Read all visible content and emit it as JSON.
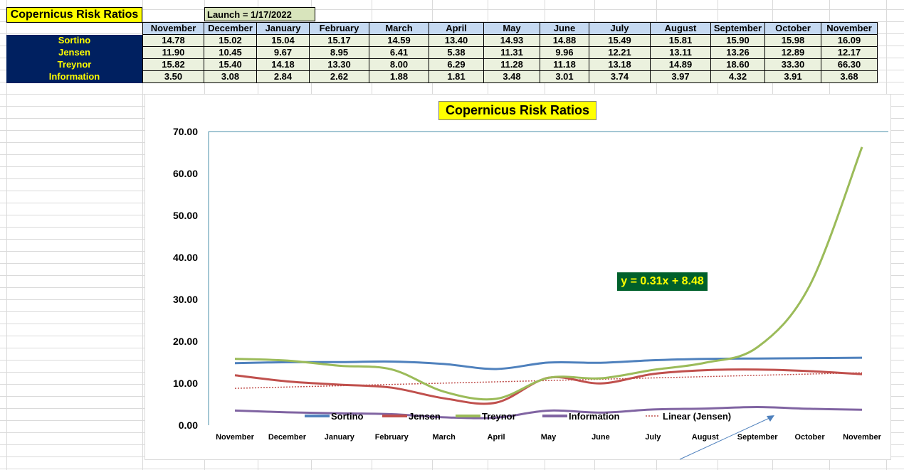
{
  "sheet": {
    "title": "Copernicus Risk Ratios",
    "launch": "Launch = 1/17/2022"
  },
  "table": {
    "months": [
      "November",
      "December",
      "January",
      "February",
      "March",
      "April",
      "May",
      "June",
      "July",
      "August",
      "September",
      "October",
      "November"
    ],
    "rows": [
      {
        "label": "Sortino",
        "values": [
          "14.78",
          "15.02",
          "15.04",
          "15.17",
          "14.59",
          "13.40",
          "14.93",
          "14.88",
          "15.49",
          "15.81",
          "15.90",
          "15.98",
          "16.09"
        ]
      },
      {
        "label": "Jensen",
        "values": [
          "11.90",
          "10.45",
          "9.67",
          "8.95",
          "6.41",
          "5.38",
          "11.31",
          "9.96",
          "12.21",
          "13.11",
          "13.26",
          "12.89",
          "12.17"
        ]
      },
      {
        "label": "Treynor",
        "values": [
          "15.82",
          "15.40",
          "14.18",
          "13.30",
          "8.00",
          "6.29",
          "11.28",
          "11.18",
          "13.18",
          "14.89",
          "18.60",
          "33.30",
          "66.30"
        ]
      },
      {
        "label": "Information",
        "values": [
          "3.50",
          "3.08",
          "2.84",
          "2.62",
          "1.88",
          "1.81",
          "3.48",
          "3.01",
          "3.74",
          "3.97",
          "4.32",
          "3.91",
          "3.68"
        ]
      }
    ]
  },
  "chart_data": {
    "type": "line",
    "title": "Copernicus Risk Ratios",
    "categories": [
      "November",
      "December",
      "January",
      "February",
      "March",
      "April",
      "May",
      "June",
      "July",
      "August",
      "September",
      "October",
      "November"
    ],
    "ylim": [
      0,
      70
    ],
    "yticks": [
      "0.00",
      "10.00",
      "20.00",
      "30.00",
      "40.00",
      "50.00",
      "60.00",
      "70.00"
    ],
    "smooth": true,
    "grid": false,
    "legend": "bottom",
    "series": [
      {
        "name": "Sortino",
        "color": "#4f81bd",
        "values": [
          14.78,
          15.02,
          15.04,
          15.17,
          14.59,
          13.4,
          14.93,
          14.88,
          15.49,
          15.81,
          15.9,
          15.98,
          16.09
        ]
      },
      {
        "name": "Jensen",
        "color": "#c0504d",
        "values": [
          11.9,
          10.45,
          9.67,
          8.95,
          6.41,
          5.38,
          11.31,
          9.96,
          12.21,
          13.11,
          13.26,
          12.89,
          12.17
        ]
      },
      {
        "name": "Treynor",
        "color": "#9bbb59",
        "values": [
          15.82,
          15.4,
          14.18,
          13.3,
          8.0,
          6.29,
          11.28,
          11.18,
          13.18,
          14.89,
          18.6,
          33.3,
          66.3
        ]
      },
      {
        "name": "Information",
        "color": "#8064a2",
        "values": [
          3.5,
          3.08,
          2.84,
          2.62,
          1.88,
          1.81,
          3.48,
          3.01,
          3.74,
          3.97,
          4.32,
          3.91,
          3.68
        ]
      }
    ],
    "trendline": {
      "name": "Linear (Jensen)",
      "color": "#c0504d",
      "slope": 0.31,
      "intercept": 8.48,
      "equation": "y = 0.31x + 8.48"
    }
  }
}
